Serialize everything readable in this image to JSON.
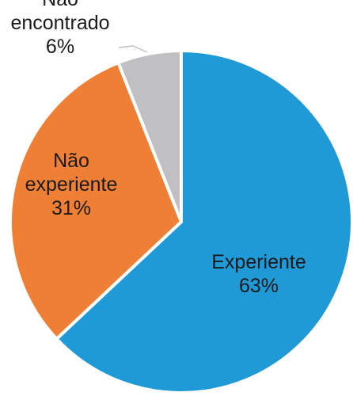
{
  "chart_data": {
    "type": "pie",
    "start_angle_deg": 0,
    "direction": "clockwise",
    "slices": [
      {
        "name": "Experiente",
        "value": 63,
        "label_lines": [
          "Experiente",
          "63%"
        ],
        "color": "#1f9ad6"
      },
      {
        "name": "Não experiente",
        "value": 31,
        "label_lines": [
          "Não",
          "experiente",
          "31%"
        ],
        "color": "#ee7f35"
      },
      {
        "name": "Não encontrado",
        "value": 6,
        "label_lines": [
          "Não",
          "encontrado",
          "6%"
        ],
        "color": "#c0bfc1"
      }
    ]
  }
}
